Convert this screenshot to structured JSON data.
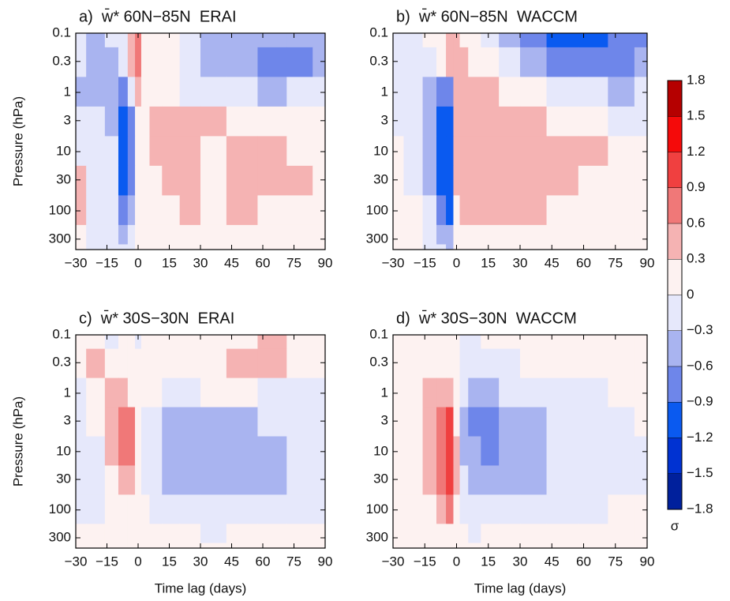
{
  "chart_data": [
    {
      "type": "contour",
      "title": "a)  w̄* 60N−85N  ERAI",
      "ylabel": "Pressure (hPa)",
      "xlim": [
        -30,
        90
      ],
      "xticks": [
        {
          "value": -30,
          "label": "−30"
        },
        {
          "value": -15,
          "label": "−15"
        },
        0,
        15,
        30,
        45,
        60,
        75,
        90
      ],
      "ylim": [
        0.1,
        450
      ],
      "yscale": "log",
      "y_reversed": true,
      "yticks": [
        0.1,
        0.3,
        1,
        3,
        10,
        30,
        100,
        300
      ],
      "x": [
        -30,
        -20,
        -12,
        -7,
        -3,
        0,
        3,
        8,
        15,
        25,
        35,
        50,
        65,
        78,
        90
      ],
      "y": [
        0.1,
        0.3,
        1,
        3,
        10,
        30,
        100,
        300,
        450
      ],
      "z": [
        [
          -0.2,
          -0.4,
          -0.2,
          -0.1,
          0.4,
          0.6,
          0.2,
          0.1,
          0.2,
          -0.2,
          -0.5,
          -0.4,
          -0.6,
          -0.6,
          -0.4
        ],
        [
          -0.2,
          -0.5,
          -0.4,
          -0.3,
          0.3,
          0.7,
          0.1,
          0.1,
          0.2,
          -0.3,
          -0.6,
          -0.6,
          -0.7,
          -0.7,
          -0.5
        ],
        [
          -0.5,
          -0.4,
          -0.5,
          -0.7,
          -0.2,
          0.3,
          0.1,
          0.1,
          0.2,
          -0.1,
          -0.3,
          -0.3,
          -0.4,
          -0.2,
          -0.2
        ],
        [
          -0.3,
          -0.2,
          -0.4,
          -1.0,
          -0.7,
          0.2,
          0.1,
          0.3,
          0.4,
          0.4,
          0.3,
          0.2,
          0.1,
          0.1,
          0.0
        ],
        [
          -0.1,
          -0.1,
          -0.3,
          -1.1,
          -0.8,
          0.1,
          0.1,
          0.3,
          0.4,
          0.3,
          0.2,
          0.4,
          0.3,
          0.2,
          0.0
        ],
        [
          0.3,
          -0.1,
          -0.3,
          -1.0,
          -0.7,
          0.1,
          0.0,
          0.2,
          0.3,
          0.3,
          0.1,
          0.4,
          0.3,
          0.3,
          0.1
        ],
        [
          0.4,
          -0.2,
          -0.3,
          -0.9,
          -0.6,
          0.0,
          0.1,
          0.2,
          0.2,
          0.3,
          0.1,
          0.3,
          0.2,
          0.1,
          0.1
        ],
        [
          0.1,
          -0.1,
          -0.2,
          -0.5,
          -0.3,
          0.0,
          0.0,
          0.1,
          0.1,
          0.1,
          0.0,
          0.1,
          0.1,
          0.0,
          0.1
        ],
        [
          0.0,
          -0.1,
          -0.1,
          -0.3,
          -0.2,
          0.0,
          0.0,
          0.1,
          0.1,
          0.0,
          0.0,
          0.1,
          0.0,
          0.0,
          0.0
        ]
      ]
    },
    {
      "type": "contour",
      "title": "b)  w̄* 60N−85N  WACCM",
      "xlim": [
        -30,
        90
      ],
      "xticks": [
        {
          "value": -30,
          "label": "−30"
        },
        {
          "value": -15,
          "label": "−15"
        },
        0,
        15,
        30,
        45,
        60,
        75,
        90
      ],
      "ylim": [
        0.1,
        450
      ],
      "yscale": "log",
      "y_reversed": true,
      "yticks": [
        0.1,
        0.3,
        1,
        3,
        10,
        30,
        100,
        300
      ],
      "x": [
        -30,
        -20,
        -12,
        -7,
        -3,
        0,
        3,
        8,
        15,
        25,
        35,
        50,
        65,
        78,
        90
      ],
      "y": [
        0.1,
        0.3,
        1,
        3,
        10,
        30,
        100,
        300,
        450
      ],
      "z": [
        [
          -0.1,
          -0.1,
          0.0,
          0.1,
          0.4,
          0.3,
          0.1,
          0.0,
          -0.3,
          -0.6,
          -0.9,
          -1.0,
          -1.0,
          -0.9,
          -0.7
        ],
        [
          -0.1,
          -0.2,
          -0.1,
          0.0,
          0.3,
          0.4,
          0.3,
          0.2,
          0.0,
          -0.3,
          -0.6,
          -0.7,
          -0.8,
          -0.8,
          -0.6
        ],
        [
          -0.1,
          -0.3,
          -0.5,
          -0.9,
          -0.7,
          0.3,
          0.4,
          0.3,
          0.3,
          0.1,
          0.0,
          -0.2,
          -0.3,
          -0.4,
          -0.3
        ],
        [
          -0.1,
          -0.2,
          -0.5,
          -1.0,
          -1.0,
          0.4,
          0.4,
          0.4,
          0.4,
          0.4,
          0.3,
          0.1,
          0.0,
          -0.1,
          -0.1
        ],
        [
          0.0,
          -0.1,
          -0.4,
          -1.0,
          -1.2,
          0.4,
          0.4,
          0.4,
          0.4,
          0.4,
          0.4,
          0.4,
          0.3,
          0.1,
          0.1
        ],
        [
          0.0,
          -0.1,
          -0.4,
          -1.0,
          -1.2,
          0.3,
          0.4,
          0.4,
          0.4,
          0.4,
          0.4,
          0.3,
          0.1,
          0.2,
          0.1
        ],
        [
          0.1,
          0.0,
          -0.3,
          -0.9,
          -1.1,
          0.2,
          0.3,
          0.3,
          0.3,
          0.3,
          0.3,
          0.2,
          0.1,
          0.1,
          0.1
        ],
        [
          0.1,
          0.0,
          -0.1,
          -0.5,
          -0.6,
          0.1,
          0.1,
          0.1,
          0.1,
          0.1,
          0.1,
          0.1,
          0.1,
          0.1,
          0.1
        ],
        [
          0.1,
          0.0,
          -0.1,
          -0.3,
          -0.4,
          0.1,
          0.1,
          0.1,
          0.1,
          0.1,
          0.1,
          0.1,
          0.1,
          0.0,
          0.0
        ]
      ]
    },
    {
      "type": "contour",
      "title": "c)  w̄* 30S−30N  ERAI",
      "ylabel": "Pressure (hPa)",
      "xlabel": "Time lag (days)",
      "xlim": [
        -30,
        90
      ],
      "xticks": [
        {
          "value": -30,
          "label": "−30"
        },
        {
          "value": -15,
          "label": "−15"
        },
        0,
        15,
        30,
        45,
        60,
        75,
        90
      ],
      "ylim": [
        0.1,
        450
      ],
      "yscale": "log",
      "y_reversed": true,
      "yticks": [
        0.1,
        0.3,
        1,
        3,
        10,
        30,
        100,
        300
      ],
      "x": [
        -30,
        -20,
        -12,
        -7,
        -3,
        0,
        3,
        8,
        15,
        25,
        35,
        50,
        65,
        78,
        90
      ],
      "y": [
        0.1,
        0.3,
        1,
        3,
        10,
        30,
        100,
        300,
        450
      ],
      "z": [
        [
          0.2,
          0.1,
          -0.1,
          0.0,
          0.1,
          -0.1,
          0.1,
          0.0,
          0.1,
          0.2,
          0.1,
          0.2,
          0.3,
          0.1,
          0.1
        ],
        [
          0.2,
          0.3,
          0.1,
          0.1,
          0.2,
          0.0,
          0.0,
          0.1,
          0.1,
          0.2,
          0.2,
          0.4,
          0.3,
          0.2,
          0.1
        ],
        [
          -0.1,
          0.2,
          0.4,
          0.3,
          0.2,
          0.0,
          0.0,
          0.0,
          -0.1,
          -0.1,
          0.0,
          0.0,
          -0.1,
          -0.1,
          -0.1
        ],
        [
          -0.1,
          0.0,
          0.3,
          0.6,
          0.7,
          0.1,
          -0.2,
          -0.3,
          -0.5,
          -0.6,
          -0.5,
          -0.4,
          -0.3,
          -0.2,
          -0.2
        ],
        [
          -0.2,
          -0.1,
          0.3,
          0.6,
          0.8,
          0.2,
          -0.2,
          -0.3,
          -0.5,
          -0.6,
          -0.6,
          -0.5,
          -0.4,
          -0.3,
          -0.3
        ],
        [
          -0.3,
          -0.1,
          0.2,
          0.4,
          0.5,
          0.1,
          -0.1,
          -0.2,
          -0.4,
          -0.5,
          -0.5,
          -0.6,
          -0.4,
          -0.3,
          -0.2
        ],
        [
          -0.3,
          -0.1,
          0.1,
          0.2,
          0.2,
          0.0,
          0.0,
          -0.1,
          -0.1,
          -0.2,
          -0.2,
          -0.2,
          -0.1,
          -0.1,
          -0.1
        ],
        [
          0.0,
          0.1,
          0.0,
          0.1,
          0.1,
          0.0,
          0.0,
          0.0,
          0.1,
          0.0,
          -0.1,
          0.0,
          0.0,
          0.0,
          0.0
        ],
        [
          0.1,
          0.0,
          0.0,
          0.1,
          0.0,
          0.0,
          0.0,
          0.0,
          0.0,
          0.0,
          0.0,
          0.0,
          0.0,
          0.0,
          0.0
        ]
      ]
    },
    {
      "type": "contour",
      "title": "d)  w̄* 30S−30N  WACCM",
      "xlabel": "Time lag (days)",
      "xlim": [
        -30,
        90
      ],
      "xticks": [
        {
          "value": -30,
          "label": "−30"
        },
        {
          "value": -15,
          "label": "−15"
        },
        0,
        15,
        30,
        45,
        60,
        75,
        90
      ],
      "ylim": [
        0.1,
        450
      ],
      "yscale": "log",
      "y_reversed": true,
      "yticks": [
        0.1,
        0.3,
        1,
        3,
        10,
        30,
        100,
        300
      ],
      "x": [
        -30,
        -20,
        -12,
        -7,
        -3,
        0,
        3,
        8,
        15,
        25,
        35,
        50,
        65,
        78,
        90
      ],
      "y": [
        0.1,
        0.3,
        1,
        3,
        10,
        30,
        100,
        300,
        450
      ],
      "z": [
        [
          0.1,
          0.1,
          0.0,
          0.0,
          0.1,
          0.0,
          -0.1,
          -0.1,
          0.0,
          0.1,
          0.1,
          0.2,
          0.1,
          0.1,
          0.0
        ],
        [
          0.1,
          0.1,
          0.1,
          0.1,
          0.1,
          0.0,
          -0.1,
          -0.1,
          -0.1,
          -0.1,
          0.0,
          0.0,
          0.0,
          0.0,
          0.0
        ],
        [
          0.1,
          0.1,
          0.3,
          0.5,
          0.5,
          0.1,
          -0.3,
          -0.4,
          -0.4,
          -0.3,
          -0.2,
          -0.1,
          -0.1,
          0.0,
          0.0
        ],
        [
          0.1,
          0.2,
          0.4,
          0.7,
          0.9,
          0.2,
          -0.4,
          -0.7,
          -0.9,
          -0.6,
          -0.4,
          -0.2,
          -0.1,
          -0.1,
          0.0
        ],
        [
          0.1,
          0.2,
          0.4,
          0.8,
          1.1,
          0.3,
          -0.4,
          -0.6,
          -0.7,
          -0.6,
          -0.5,
          -0.3,
          -0.2,
          -0.1,
          -0.1
        ],
        [
          0.0,
          0.1,
          0.3,
          0.7,
          1.0,
          0.3,
          -0.3,
          -0.5,
          -0.6,
          -0.6,
          -0.5,
          -0.2,
          -0.1,
          -0.1,
          -0.1
        ],
        [
          0.0,
          0.0,
          0.2,
          0.4,
          0.6,
          0.1,
          -0.1,
          -0.2,
          -0.2,
          -0.2,
          -0.1,
          -0.1,
          -0.1,
          0.0,
          0.0
        ],
        [
          0.0,
          0.0,
          0.1,
          0.1,
          0.2,
          0.0,
          0.0,
          -0.1,
          0.0,
          0.0,
          0.0,
          0.0,
          0.0,
          0.0,
          0.0
        ],
        [
          0.0,
          0.0,
          0.0,
          0.1,
          0.1,
          0.0,
          0.0,
          0.0,
          0.0,
          0.0,
          0.0,
          0.0,
          0.0,
          0.0,
          0.0
        ]
      ]
    },
    {
      "type": "colorbar",
      "label": "σ",
      "levels": [
        {
          "value": -1.8,
          "label": "−1.8"
        },
        {
          "value": -1.5,
          "label": "−1.5"
        },
        {
          "value": -1.2,
          "label": "−1.2"
        },
        {
          "value": -0.9,
          "label": "−0.9"
        },
        {
          "value": -0.6,
          "label": "−0.6"
        },
        {
          "value": -0.3,
          "label": "−0.3"
        },
        0,
        0.3,
        0.6,
        0.9,
        1.2,
        1.5,
        1.8
      ],
      "colors": [
        "#00209c",
        "#0032d2",
        "#0a5af0",
        "#6e86ea",
        "#a9b4f0",
        "#e6e8fb",
        "#fdf2f1",
        "#f5b3b3",
        "#f07878",
        "#f04040",
        "#f50a0a",
        "#b50000"
      ]
    }
  ]
}
